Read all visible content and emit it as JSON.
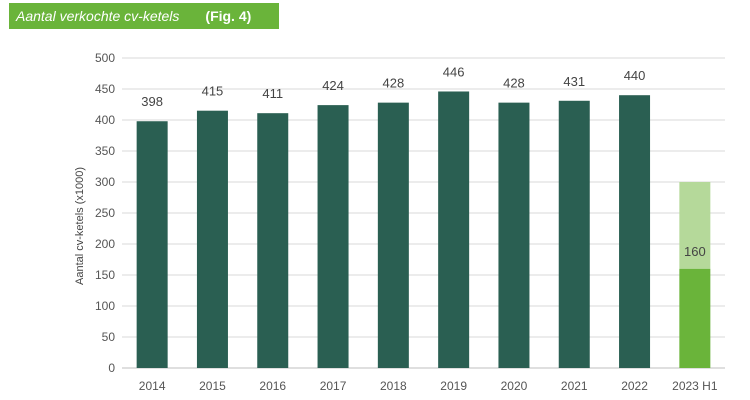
{
  "title": {
    "text": "Aantal verkochte cv-ketels",
    "fig": "(Fig. 4)"
  },
  "colors": {
    "banner": "#6ab43a",
    "bar": "#2a5f52",
    "bar_highlight": "#6ab43a",
    "bar_light": "#b5d99a",
    "grid": "#d9d9d9"
  },
  "chart_data": {
    "type": "bar",
    "title": "Aantal verkochte cv-ketels",
    "xlabel": "",
    "ylabel": "Aantal cv-ketels (x1000)",
    "ylim": [
      0,
      500
    ],
    "yticks": [
      0,
      50,
      100,
      150,
      200,
      250,
      300,
      350,
      400,
      450,
      500
    ],
    "grid": true,
    "categories": [
      "2014",
      "2015",
      "2016",
      "2017",
      "2018",
      "2019",
      "2020",
      "2021",
      "2022",
      "2023 H1"
    ],
    "values": [
      398,
      415,
      411,
      424,
      428,
      446,
      428,
      431,
      440,
      160
    ],
    "data_labels": [
      "398",
      "415",
      "411",
      "424",
      "428",
      "446",
      "428",
      "431",
      "440",
      "160"
    ],
    "extension": {
      "category": "2023 H1",
      "from": 160,
      "to": 300
    }
  }
}
